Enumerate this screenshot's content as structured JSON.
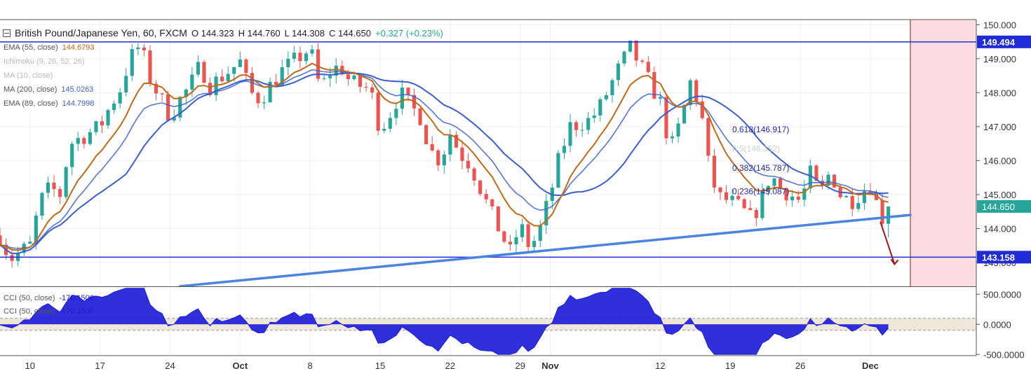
{
  "header": {
    "symbol": "British Pound/Japanese Yen, 60, FXCM",
    "open": "O 144.323",
    "high": "H 144.760",
    "low": "L 144.308",
    "close": "C 144.650",
    "change": "+0.327 (+0.23%)"
  },
  "legend": [
    {
      "name": "EMA (55, close)",
      "value": "144.6793",
      "color": "#c06a15"
    },
    {
      "name": "Ichimoku (9, 26, 52, 26)",
      "value": "",
      "color": "#bbbbbb"
    },
    {
      "name": "MA (10, close)",
      "value": "",
      "color": "#bbbbbb"
    },
    {
      "name": "MA (200, close)",
      "value": "145.0263",
      "color": "#3a5fcd"
    },
    {
      "name": "EMA (89, close)",
      "value": "144.7998",
      "color": "#3a5fcd"
    }
  ],
  "oscillator_legend": [
    {
      "name": "CCI (50, close)",
      "value": "-176.1506"
    },
    {
      "name": "CCI (50, close)",
      "value": "-176.1506"
    }
  ],
  "colors": {
    "up": "#26a69a",
    "down": "#ef5350",
    "accent": "#1f2bd6",
    "ema55": "#c06a15",
    "ma200": "#3a5fcd",
    "trend": "#4a84e0",
    "zone": "#fcdde2",
    "cci": "#1a1ad6"
  },
  "chart_data": {
    "type": "candlestick",
    "title": "British Pound/Japanese Yen, 60, FXCM",
    "ylim": [
      142.3,
      150.15
    ],
    "y_ticks": [
      "150.000",
      "149.000",
      "148.000",
      "147.000",
      "146.000",
      "145.000",
      "144.000",
      "143.000"
    ],
    "x_ticks": [
      "10",
      "17",
      "24",
      "Oct",
      "8",
      "15",
      "22",
      "29",
      "Nov",
      "12",
      "19",
      "26",
      "Dec"
    ],
    "price_path": [
      [
        "09-07",
        143.8
      ],
      [
        "09-08",
        143.1
      ],
      [
        "09-10",
        143.5
      ],
      [
        "09-11",
        144.8
      ],
      [
        "09-12",
        145.2
      ],
      [
        "09-13",
        145.0
      ],
      [
        "09-14",
        146.5
      ],
      [
        "09-17",
        147.0
      ],
      [
        "09-18",
        147.6
      ],
      [
        "09-19",
        148.1
      ],
      [
        "09-20",
        149.0
      ],
      [
        "09-21",
        149.4
      ],
      [
        "09-22",
        148.4
      ],
      [
        "09-24",
        147.3
      ],
      [
        "09-25",
        147.8
      ],
      [
        "09-26",
        148.2
      ],
      [
        "09-27",
        148.8
      ],
      [
        "09-28",
        148.2
      ],
      [
        "10-01",
        148.9
      ],
      [
        "10-02",
        148.0
      ],
      [
        "10-03",
        147.8
      ],
      [
        "10-04",
        148.2
      ],
      [
        "10-05",
        148.6
      ],
      [
        "10-08",
        149.3
      ],
      [
        "10-09",
        148.1
      ],
      [
        "10-10",
        148.6
      ],
      [
        "10-11",
        148.8
      ],
      [
        "10-12",
        148.3
      ],
      [
        "10-14",
        148.1
      ],
      [
        "10-15",
        146.9
      ],
      [
        "10-16",
        147.4
      ],
      [
        "10-17",
        148.0
      ],
      [
        "10-18",
        147.6
      ],
      [
        "10-19",
        147.3
      ],
      [
        "10-20",
        146.3
      ],
      [
        "10-21",
        146.0
      ],
      [
        "10-22",
        146.8
      ],
      [
        "10-23",
        146.2
      ],
      [
        "10-24",
        145.9
      ],
      [
        "10-25",
        145.2
      ],
      [
        "10-26",
        144.5
      ],
      [
        "10-27",
        143.9
      ],
      [
        "10-28",
        143.3
      ],
      [
        "10-29",
        144.1
      ],
      [
        "10-30",
        143.4
      ],
      [
        "10-31",
        144.0
      ],
      [
        "11-01",
        145.0
      ],
      [
        "11-02",
        146.2
      ],
      [
        "11-03",
        147.0
      ],
      [
        "11-05",
        147.2
      ],
      [
        "11-06",
        147.6
      ],
      [
        "11-07",
        148.2
      ],
      [
        "11-08",
        148.8
      ],
      [
        "11-09",
        149.3
      ],
      [
        "11-10",
        148.8
      ],
      [
        "11-12",
        147.7
      ],
      [
        "11-13",
        146.3
      ],
      [
        "11-14",
        147.1
      ],
      [
        "11-15",
        148.3
      ],
      [
        "11-16",
        147.6
      ],
      [
        "11-17",
        145.5
      ],
      [
        "11-18",
        144.9
      ],
      [
        "11-19",
        144.8
      ],
      [
        "11-20",
        144.6
      ],
      [
        "11-21",
        144.3
      ],
      [
        "11-22",
        144.7
      ],
      [
        "11-23",
        145.6
      ],
      [
        "11-24",
        145.2
      ],
      [
        "11-26",
        144.8
      ],
      [
        "11-27",
        145.6
      ],
      [
        "11-28",
        145.0
      ],
      [
        "11-29",
        145.7
      ],
      [
        "11-30",
        145.0
      ],
      [
        "12-01",
        144.8
      ],
      [
        "12-03",
        145.3
      ],
      [
        "12-04",
        144.4
      ],
      [
        "12-05",
        144.0
      ]
    ],
    "last_price": 144.65,
    "series": [
      {
        "name": "EMA (55, close)",
        "last": 144.6793
      },
      {
        "name": "MA (200, close)",
        "last": 145.0263
      },
      {
        "name": "EMA (89, close)",
        "last": 144.7998
      }
    ],
    "horizontal_levels": [
      {
        "label": "149.494",
        "value": 149.494
      },
      {
        "label": "143.158",
        "value": 143.158
      }
    ],
    "current_price_label": "144.650",
    "fibonacci": [
      {
        "label": "0.618(146.917)",
        "value": 146.917
      },
      {
        "label": "0.5(146.352)",
        "value": 146.352
      },
      {
        "label": "0.382(145.787)",
        "value": 145.787
      },
      {
        "label": "0.236(145.087)",
        "value": 145.087
      }
    ],
    "trendline": {
      "from": [
        "09-25",
        142.3
      ],
      "to": [
        "12-07",
        144.4
      ]
    },
    "oscillator": {
      "name": "CCI (50, close)",
      "last": -176.1506,
      "ylim": [
        -520,
        620
      ],
      "y_ticks": [
        "500.0000",
        "0.0000",
        "-500.0000"
      ],
      "band": [
        -100,
        100
      ]
    }
  }
}
